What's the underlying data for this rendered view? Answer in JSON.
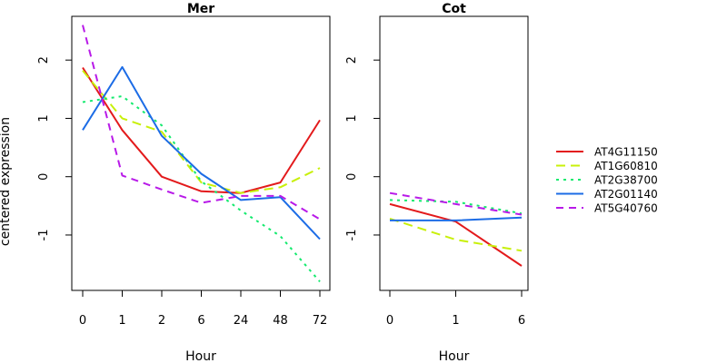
{
  "chart_data": {
    "type": "line",
    "ylabel": "centered expression",
    "legend_position": "right",
    "grid": false,
    "ylim": [
      -1.95,
      2.75
    ],
    "yticks": [
      "-1",
      "0",
      "1",
      "2"
    ],
    "series": [
      {
        "name": "AT4G11150",
        "color": "#e31a1c",
        "dash": "solid"
      },
      {
        "name": "AT1G60810",
        "color": "#c8f00a",
        "dash": "long-dash"
      },
      {
        "name": "AT2G38700",
        "color": "#14ea6e",
        "dash": "dotted"
      },
      {
        "name": "AT2G01140",
        "color": "#1c6ce6",
        "dash": "solid"
      },
      {
        "name": "AT5G40760",
        "color": "#b81ae8",
        "dash": "dash"
      }
    ],
    "panels": [
      {
        "title": "Mer",
        "xlabel": "Hour",
        "categories": [
          "0",
          "1",
          "2",
          "6",
          "24",
          "48",
          "72"
        ],
        "values": {
          "AT4G11150": [
            1.87,
            0.8,
            0.0,
            -0.25,
            -0.28,
            -0.1,
            0.97
          ],
          "AT1G60810": [
            1.82,
            1.0,
            0.77,
            -0.1,
            -0.28,
            -0.18,
            0.15
          ],
          "AT2G38700": [
            1.28,
            1.38,
            0.88,
            -0.08,
            -0.58,
            -1.02,
            -1.8
          ],
          "AT2G01140": [
            0.8,
            1.88,
            0.7,
            0.05,
            -0.4,
            -0.35,
            -1.07
          ],
          "AT5G40760": [
            2.6,
            0.02,
            -0.22,
            -0.45,
            -0.33,
            -0.33,
            -0.73
          ]
        }
      },
      {
        "title": "Cot",
        "xlabel": "Hour",
        "categories": [
          "0",
          "1",
          "6"
        ],
        "values": {
          "AT4G11150": [
            -0.47,
            -0.77,
            -1.53
          ],
          "AT1G60810": [
            -0.72,
            -1.08,
            -1.27
          ],
          "AT2G38700": [
            -0.4,
            -0.43,
            -0.63
          ],
          "AT2G01140": [
            -0.75,
            -0.75,
            -0.7
          ],
          "AT5G40760": [
            -0.28,
            -0.47,
            -0.65
          ]
        }
      }
    ]
  }
}
